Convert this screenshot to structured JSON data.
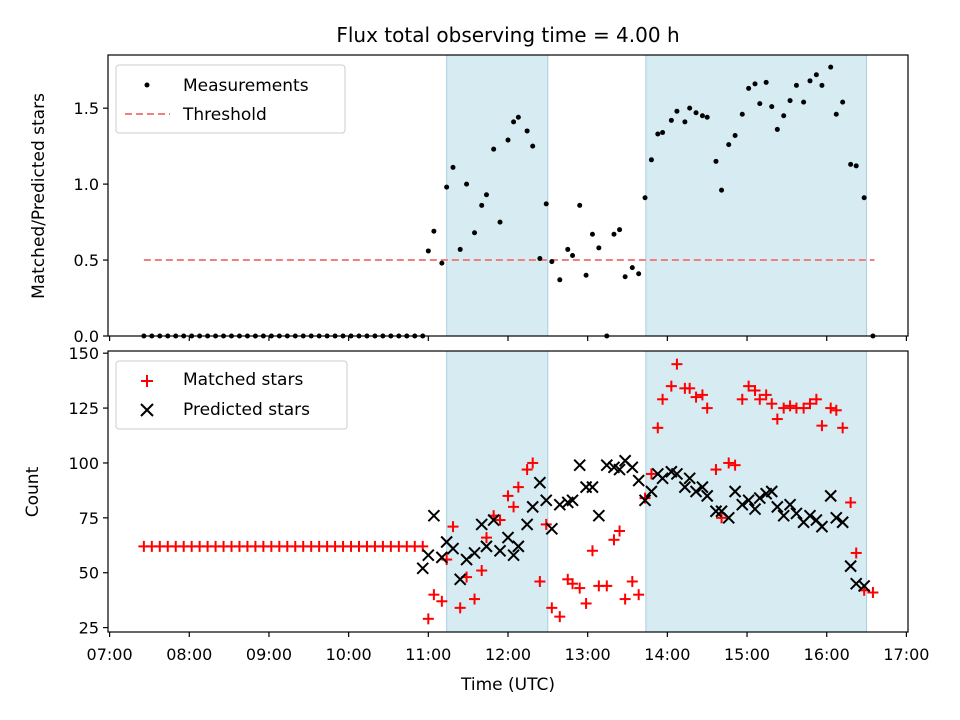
{
  "chart_data": [
    {
      "type": "scatter",
      "title": "Flux total observing time = 4.00 h",
      "xlabel": "",
      "ylabel": "Matched/Predicted stars",
      "xlim": [
        6.98,
        17.02
      ],
      "ylim": [
        0,
        1.85
      ],
      "yticks": [
        0.0,
        0.5,
        1.0,
        1.5
      ],
      "ytick_labels": [
        "0.0",
        "0.5",
        "1.0",
        "1.5"
      ],
      "shaded_spans": [
        [
          11.23,
          12.5
        ],
        [
          13.73,
          16.5
        ]
      ],
      "threshold": {
        "name": "Threshold",
        "value": 0.5,
        "x_range": [
          7.43,
          16.6
        ],
        "color": "#f08080"
      },
      "legend": {
        "location": "top-left",
        "entries": [
          "Measurements",
          "Threshold"
        ]
      },
      "series": [
        {
          "name": "Measurements",
          "marker": "dot",
          "color": "#000000",
          "x": [
            7.43,
            7.53,
            7.63,
            7.73,
            7.83,
            7.93,
            8.03,
            8.13,
            8.23,
            8.33,
            8.43,
            8.53,
            8.63,
            8.73,
            8.83,
            8.93,
            9.03,
            9.13,
            9.23,
            9.33,
            9.43,
            9.53,
            9.63,
            9.73,
            9.83,
            9.93,
            10.03,
            10.13,
            10.23,
            10.33,
            10.43,
            10.53,
            10.63,
            10.73,
            10.83,
            10.93,
            11.0,
            11.07,
            11.17,
            11.23,
            11.31,
            11.4,
            11.48,
            11.58,
            11.67,
            11.73,
            11.82,
            11.9,
            12.0,
            12.07,
            12.13,
            12.24,
            12.31,
            12.4,
            12.48,
            12.55,
            12.65,
            12.75,
            12.81,
            12.9,
            12.98,
            13.06,
            13.14,
            13.24,
            13.33,
            13.4,
            13.47,
            13.56,
            13.64,
            13.72,
            13.8,
            13.88,
            13.94,
            14.05,
            14.12,
            14.22,
            14.28,
            14.36,
            14.44,
            14.5,
            14.61,
            14.68,
            14.77,
            14.85,
            14.94,
            15.02,
            15.1,
            15.16,
            15.24,
            15.31,
            15.38,
            15.46,
            15.54,
            15.62,
            15.71,
            15.79,
            15.87,
            15.94,
            16.05,
            16.12,
            16.2,
            16.3,
            16.37,
            16.47,
            16.58
          ],
          "y": [
            0,
            0,
            0,
            0,
            0,
            0,
            0,
            0,
            0,
            0,
            0,
            0,
            0,
            0,
            0,
            0,
            0,
            0,
            0,
            0,
            0,
            0,
            0,
            0,
            0,
            0,
            0,
            0,
            0,
            0,
            0,
            0,
            0,
            0,
            0,
            0,
            0.56,
            0.69,
            0.48,
            0.98,
            1.11,
            0.57,
            1.0,
            0.68,
            0.86,
            0.93,
            1.23,
            0.75,
            1.29,
            1.41,
            1.44,
            1.35,
            1.25,
            0.51,
            0.87,
            0.49,
            0.37,
            0.57,
            0.53,
            0.86,
            0.4,
            0.67,
            0.58,
            0.0,
            0.67,
            0.7,
            0.39,
            0.45,
            0.41,
            0.91,
            1.16,
            1.33,
            1.34,
            1.42,
            1.48,
            1.41,
            1.5,
            1.47,
            1.45,
            1.44,
            1.15,
            0.96,
            1.26,
            1.32,
            1.46,
            1.63,
            1.66,
            1.53,
            1.67,
            1.51,
            1.36,
            1.45,
            1.55,
            1.65,
            1.54,
            1.68,
            1.72,
            1.65,
            1.77,
            1.46,
            1.54,
            1.13,
            1.12,
            0.91,
            0.0
          ]
        }
      ]
    },
    {
      "type": "scatter",
      "title": "",
      "xlabel": "Time (UTC)",
      "ylabel": "Count",
      "xlim": [
        6.98,
        17.02
      ],
      "ylim": [
        23,
        151
      ],
      "yticks": [
        25,
        50,
        75,
        100,
        125,
        150
      ],
      "ytick_labels": [
        "25",
        "50",
        "75",
        "100",
        "125",
        "150"
      ],
      "xticks": [
        7,
        8,
        9,
        10,
        11,
        12,
        13,
        14,
        15,
        16,
        17
      ],
      "xtick_labels": [
        "07:00",
        "08:00",
        "09:00",
        "10:00",
        "11:00",
        "12:00",
        "13:00",
        "14:00",
        "15:00",
        "16:00",
        "17:00"
      ],
      "shaded_spans": [
        [
          11.23,
          12.5
        ],
        [
          13.73,
          16.5
        ]
      ],
      "legend": {
        "location": "top-left",
        "entries": [
          "Matched stars",
          "Predicted stars"
        ]
      },
      "series": [
        {
          "name": "Matched stars",
          "marker": "plus",
          "color": "#ff0000",
          "x": [
            7.43,
            7.53,
            7.63,
            7.73,
            7.83,
            7.93,
            8.03,
            8.13,
            8.23,
            8.33,
            8.43,
            8.53,
            8.63,
            8.73,
            8.83,
            8.93,
            9.03,
            9.13,
            9.23,
            9.33,
            9.43,
            9.53,
            9.63,
            9.73,
            9.83,
            9.93,
            10.03,
            10.13,
            10.23,
            10.33,
            10.43,
            10.53,
            10.63,
            10.73,
            10.83,
            10.93,
            11.0,
            11.07,
            11.17,
            11.23,
            11.31,
            11.4,
            11.48,
            11.58,
            11.67,
            11.73,
            11.82,
            11.9,
            12.0,
            12.07,
            12.13,
            12.24,
            12.31,
            12.4,
            12.48,
            12.55,
            12.65,
            12.75,
            12.81,
            12.9,
            12.98,
            13.06,
            13.14,
            13.24,
            13.33,
            13.4,
            13.47,
            13.56,
            13.64,
            13.72,
            13.8,
            13.88,
            13.94,
            14.05,
            14.12,
            14.22,
            14.28,
            14.36,
            14.44,
            14.5,
            14.61,
            14.68,
            14.77,
            14.85,
            14.94,
            15.02,
            15.1,
            15.16,
            15.24,
            15.31,
            15.38,
            15.46,
            15.54,
            15.62,
            15.71,
            15.79,
            15.87,
            15.94,
            16.05,
            16.12,
            16.2,
            16.3,
            16.37,
            16.47,
            16.58
          ],
          "y": [
            62,
            62,
            62,
            62,
            62,
            62,
            62,
            62,
            62,
            62,
            62,
            62,
            62,
            62,
            62,
            62,
            62,
            62,
            62,
            62,
            62,
            62,
            62,
            62,
            62,
            62,
            62,
            62,
            62,
            62,
            62,
            62,
            62,
            62,
            62,
            62,
            29,
            40,
            37,
            56,
            71,
            34,
            48,
            38,
            51,
            66,
            76,
            74,
            85,
            80,
            89,
            97,
            100,
            46,
            72,
            34,
            30,
            47,
            45,
            43,
            36,
            60,
            44,
            44,
            65,
            69,
            38,
            46,
            40,
            84,
            95,
            116,
            129,
            135,
            145,
            134,
            134,
            130,
            131,
            125,
            97,
            75,
            100,
            99,
            129,
            135,
            133,
            129,
            131,
            127,
            120,
            125,
            126,
            125,
            125,
            127,
            129,
            117,
            125,
            124,
            116,
            82,
            59,
            42,
            41
          ]
        },
        {
          "name": "Predicted stars",
          "marker": "x",
          "color": "#000000",
          "x": [
            10.93,
            11.0,
            11.07,
            11.17,
            11.23,
            11.31,
            11.4,
            11.48,
            11.58,
            11.67,
            11.73,
            11.82,
            11.9,
            12.0,
            12.07,
            12.13,
            12.24,
            12.31,
            12.4,
            12.48,
            12.55,
            12.65,
            12.75,
            12.81,
            12.9,
            12.98,
            13.06,
            13.14,
            13.24,
            13.33,
            13.4,
            13.47,
            13.56,
            13.64,
            13.72,
            13.8,
            13.88,
            13.94,
            14.05,
            14.12,
            14.22,
            14.28,
            14.36,
            14.44,
            14.5,
            14.61,
            14.68,
            14.77,
            14.85,
            14.94,
            15.02,
            15.1,
            15.16,
            15.24,
            15.31,
            15.38,
            15.46,
            15.54,
            15.62,
            15.71,
            15.79,
            15.87,
            15.94,
            16.05,
            16.12,
            16.2,
            16.3,
            16.37,
            16.47
          ],
          "y": [
            52,
            58,
            76,
            57,
            64,
            61,
            47,
            56,
            59,
            72,
            62,
            74,
            60,
            66,
            58,
            62,
            72,
            80,
            91,
            83,
            70,
            81,
            82,
            83,
            99,
            89,
            89,
            76,
            99,
            98,
            97,
            101,
            98,
            92,
            83,
            87,
            95,
            93,
            96,
            95,
            89,
            93,
            87,
            89,
            85,
            78,
            78,
            75,
            87,
            81,
            83,
            79,
            84,
            86,
            87,
            80,
            76,
            81,
            77,
            73,
            76,
            74,
            71,
            85,
            75,
            73,
            53,
            45,
            44
          ]
        }
      ]
    }
  ]
}
